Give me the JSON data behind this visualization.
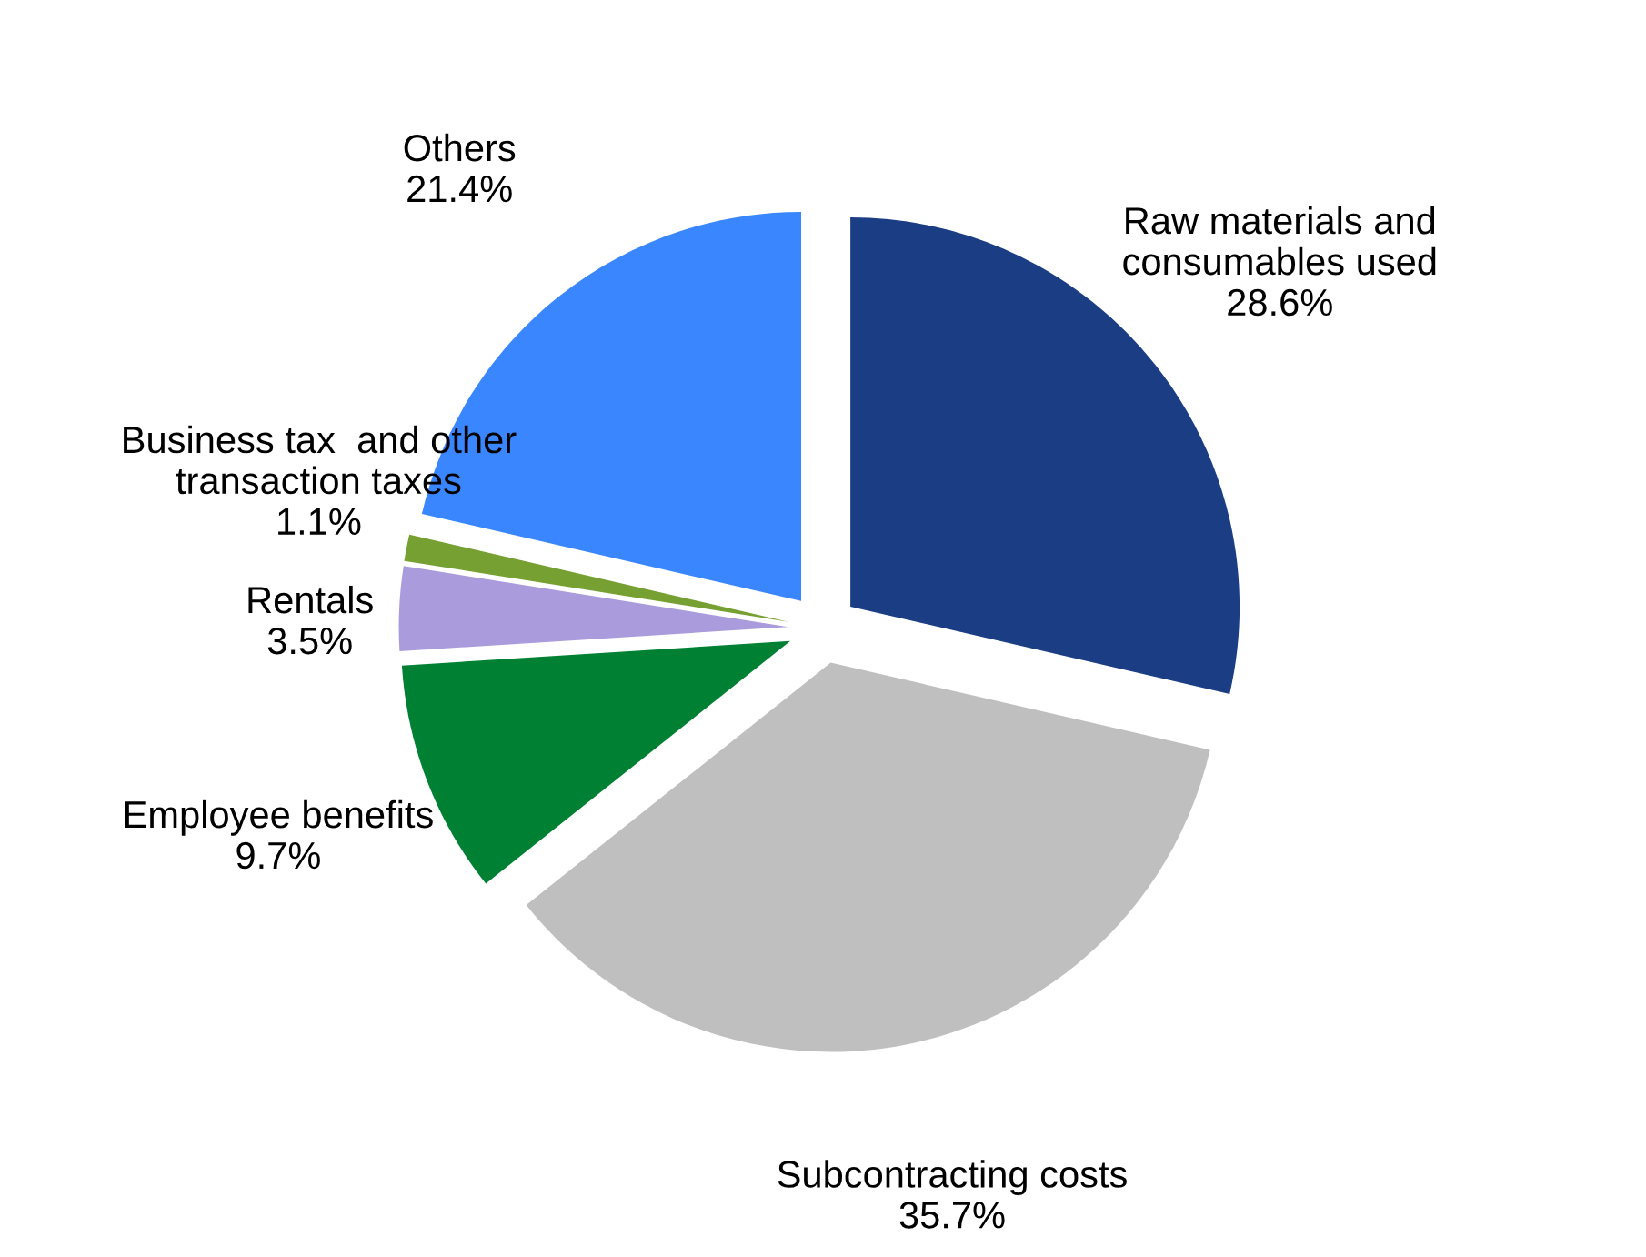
{
  "chart_data": {
    "type": "pie",
    "categories": [
      "Raw materials and\nconsumables used",
      "Subcontracting costs",
      "Employee benefits",
      "Rentals",
      "Business tax  and other\ntransaction taxes",
      "Others"
    ],
    "values": [
      28.6,
      35.7,
      9.7,
      3.5,
      1.1,
      21.4
    ],
    "value_labels": [
      "28.6%",
      "35.7%",
      "9.7%",
      "3.5%",
      "1.1%",
      "21.4%"
    ],
    "colors": [
      "#1a3d84",
      "#bfbfbf",
      "#008033",
      "#a99bdc",
      "#77a033",
      "#3a86ff"
    ],
    "legend": false
  }
}
